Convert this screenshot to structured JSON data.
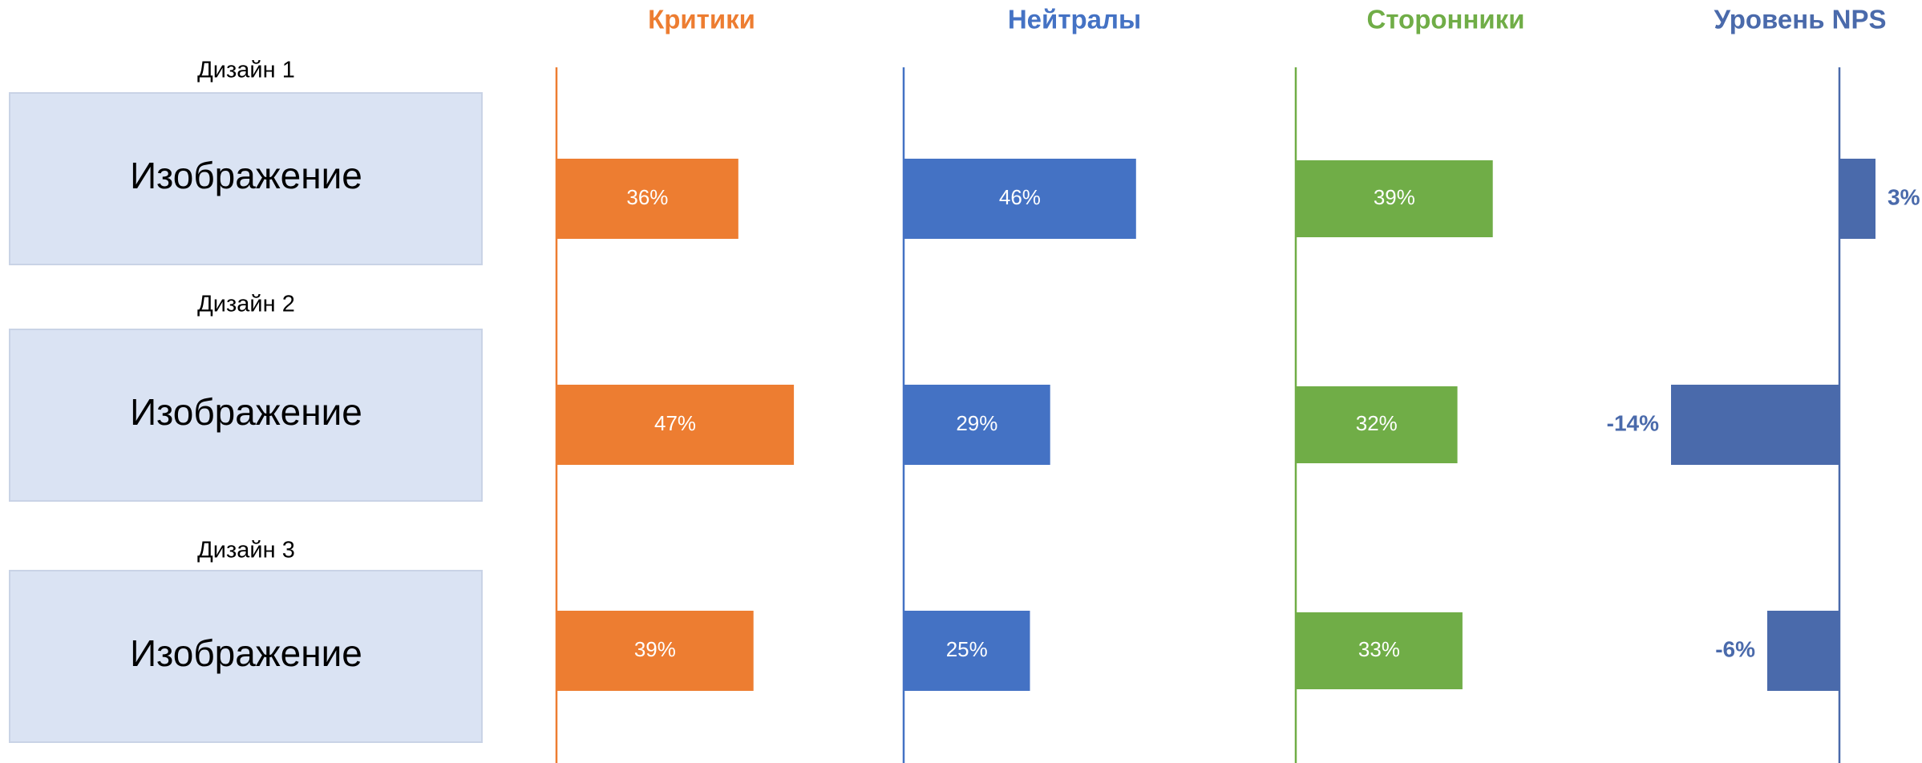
{
  "designs": [
    {
      "label": "Дизайн 1",
      "image": "Изображение"
    },
    {
      "label": "Дизайн 2",
      "image": "Изображение"
    },
    {
      "label": "Дизайн 3",
      "image": "Изображение"
    }
  ],
  "chart_data": [
    {
      "type": "bar",
      "title": "Критики",
      "color": "#ed7d31",
      "values": [
        36,
        47,
        39
      ],
      "value_labels": [
        "36%",
        "47%",
        "39%"
      ],
      "data_labels": "inside"
    },
    {
      "type": "bar",
      "title": "Нейтралы",
      "color": "#4472c4",
      "values": [
        46,
        29,
        25
      ],
      "value_labels": [
        "46%",
        "29%",
        "25%"
      ],
      "data_labels": "inside"
    },
    {
      "type": "bar",
      "title": "Сторонники",
      "color": "#70ad47",
      "values": [
        39,
        32,
        33
      ],
      "value_labels": [
        "39%",
        "32%",
        "33%"
      ],
      "data_labels": "inside"
    },
    {
      "type": "bar",
      "title": "Уровень NPS",
      "color": "#4a6aab",
      "values": [
        3,
        -14,
        -6
      ],
      "value_labels": [
        "3%",
        "-14%",
        "-6%"
      ],
      "data_labels": "outside"
    }
  ]
}
